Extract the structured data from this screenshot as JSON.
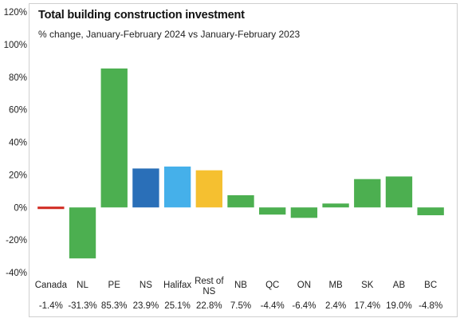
{
  "chart_data": {
    "type": "bar",
    "title": "Total building construction investment",
    "subtitle": "% change, January-February 2024 vs January-February 2023",
    "xlabel": "",
    "ylabel": "",
    "ylim": [
      -40,
      120
    ],
    "ytick_values": [
      -40,
      -20,
      0,
      20,
      40,
      60,
      80,
      100,
      120
    ],
    "ytick_labels": [
      "-40%",
      "-20%",
      "0%",
      "20%",
      "40%",
      "60%",
      "80%",
      "100%",
      "120%"
    ],
    "grid": false,
    "legend": "none",
    "categories": [
      [
        "Canada"
      ],
      [
        "NL"
      ],
      [
        "PE"
      ],
      [
        "NS"
      ],
      [
        "Halifax"
      ],
      [
        "Rest of",
        "NS"
      ],
      [
        "NB"
      ],
      [
        "QC"
      ],
      [
        "ON"
      ],
      [
        "MB"
      ],
      [
        "SK"
      ],
      [
        "AB"
      ],
      [
        "BC"
      ]
    ],
    "values": [
      -1.4,
      -31.3,
      85.3,
      23.9,
      25.1,
      22.8,
      7.5,
      -4.4,
      -6.4,
      2.4,
      17.4,
      19.0,
      -4.8
    ],
    "value_labels": [
      "-1.4%",
      "-31.3%",
      "85.3%",
      "23.9%",
      "25.1%",
      "22.8%",
      "7.5%",
      "-4.4%",
      "-6.4%",
      "2.4%",
      "17.4%",
      "19.0%",
      "-4.8%"
    ],
    "bar_colors": [
      "#d0281f",
      "#4caf50",
      "#4caf50",
      "#2a6fb8",
      "#45b0ea",
      "#f5c030",
      "#4caf50",
      "#4caf50",
      "#4caf50",
      "#4caf50",
      "#4caf50",
      "#4caf50",
      "#4caf50"
    ]
  }
}
